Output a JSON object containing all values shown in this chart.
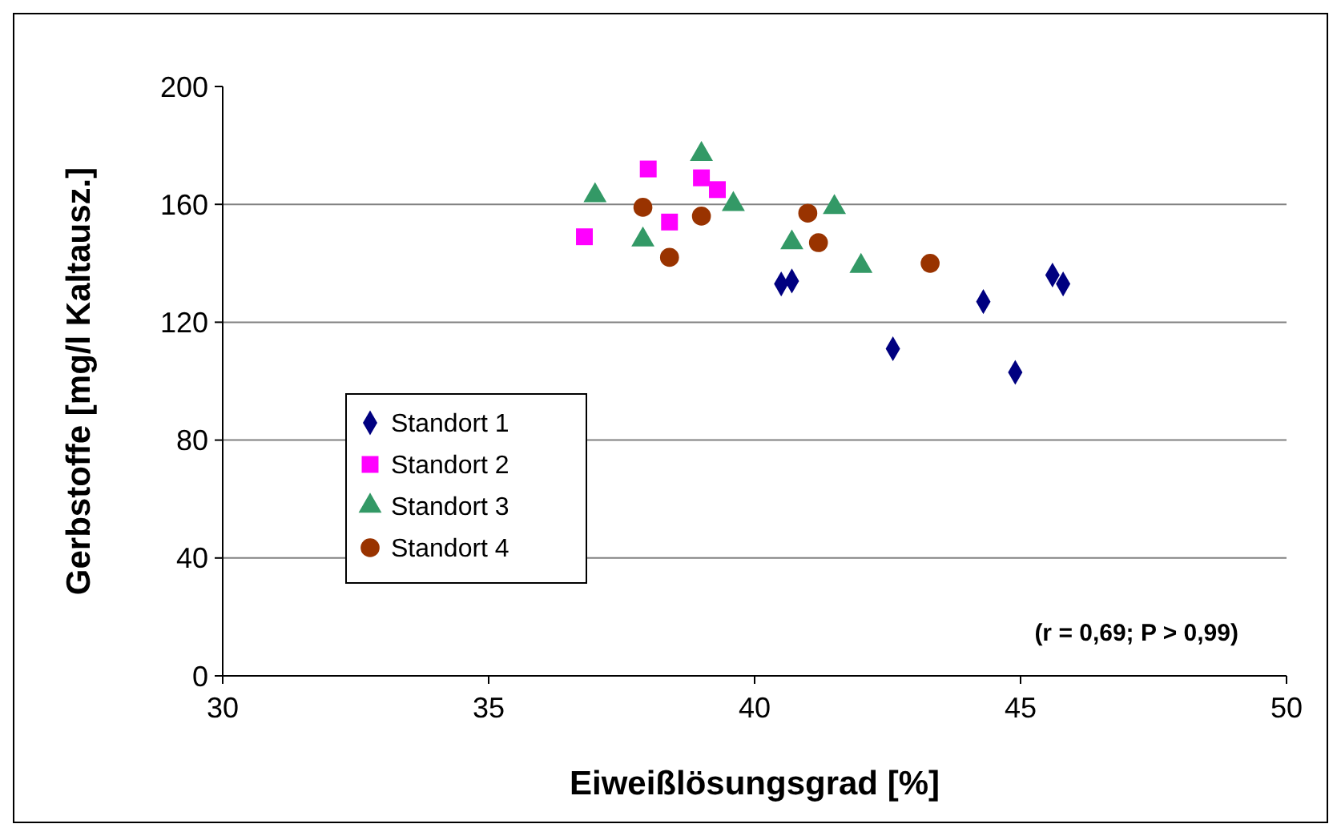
{
  "chart_data": {
    "type": "scatter",
    "xlabel": "Eiweißlösungsgrad [%]",
    "ylabel": "Gerbstoffe [mg/l Kaltausz.]",
    "xlim": [
      30,
      50
    ],
    "xticks": [
      30,
      35,
      40,
      45,
      50
    ],
    "ylim": [
      0,
      200
    ],
    "yticks": [
      0,
      40,
      80,
      120,
      160,
      200
    ],
    "grid": "y",
    "legend": "left",
    "annotations": [
      "(r = 0,69; P > 0,99)"
    ],
    "series": [
      {
        "name": "Standort 1",
        "color": "#000080",
        "marker": "diamond",
        "x": [
          40.5,
          40.7,
          42.6,
          44.3,
          44.9,
          45.6,
          45.8
        ],
        "values": [
          133,
          134,
          111,
          127,
          103,
          136,
          133
        ]
      },
      {
        "name": "Standort 2",
        "color": "#ff00ff",
        "marker": "square",
        "x": [
          36.8,
          38.0,
          38.4,
          39.0,
          39.3
        ],
        "values": [
          149,
          172,
          154,
          169,
          165
        ]
      },
      {
        "name": "Standort 3",
        "color": "#339966",
        "marker": "triangle",
        "x": [
          37.0,
          37.9,
          39.0,
          39.6,
          40.7,
          41.5,
          42.0
        ],
        "values": [
          163,
          148,
          177,
          160,
          147,
          159,
          139
        ]
      },
      {
        "name": "Standort 4",
        "color": "#993300",
        "marker": "circle",
        "x": [
          37.9,
          38.4,
          39.0,
          41.0,
          41.2,
          43.3
        ],
        "values": [
          159,
          142,
          156,
          157,
          147,
          140
        ]
      }
    ]
  }
}
